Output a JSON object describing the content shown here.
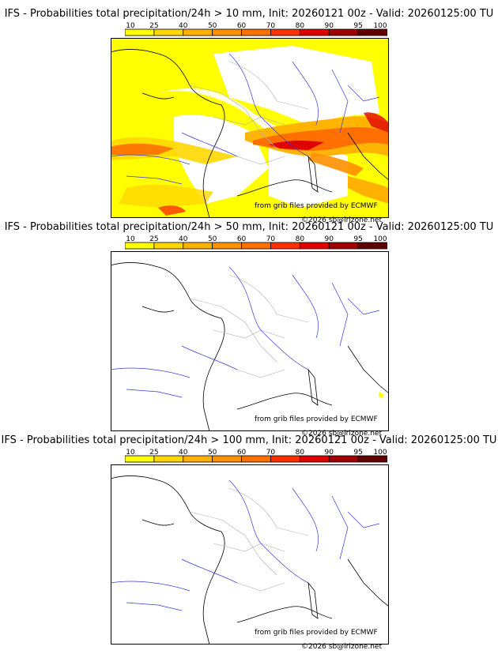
{
  "panels": [
    {
      "title": "IFS - Probabilities total precipitation/24h > 10 mm, Init: 20260121 00z - Valid: 20260125:00 TU",
      "credit_source": "from grib files provided by ECMWF",
      "credit_copyright": "©2026 sb@irizone.net"
    },
    {
      "title": "IFS - Probabilities total precipitation/24h > 50 mm, Init: 20260121 00z - Valid: 20260125:00 TU",
      "credit_source": "from grib files provided by ECMWF",
      "credit_copyright": "©2026 sb@irizone.net"
    },
    {
      "title": "IFS - Probabilities total precipitation/24h > 100 mm, Init: 20260121 00z - Valid: 20260125:00 TU",
      "credit_source": "from grib files provided by ECMWF",
      "credit_copyright": "©2026 sb@irizone.net"
    }
  ],
  "legend": {
    "ticks": [
      "10",
      "25",
      "40",
      "50",
      "60",
      "70",
      "80",
      "90",
      "95",
      "100"
    ],
    "colors": [
      "#ffff00",
      "#ffd700",
      "#ffb000",
      "#ff9000",
      "#ff7000",
      "#ff3000",
      "#e00000",
      "#a00000",
      "#600000"
    ]
  },
  "map_colors": {
    "land": "#ffffff",
    "rivers": "#3a3ad8",
    "borders_internal": "#b0b0b0",
    "coast": "#000000"
  }
}
